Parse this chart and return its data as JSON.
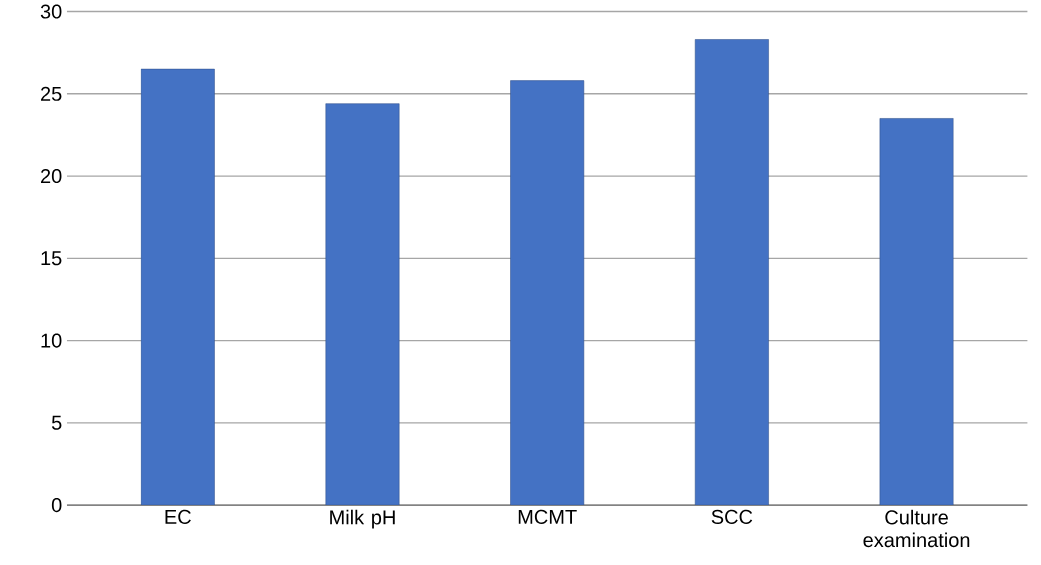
{
  "chart_data": {
    "type": "bar",
    "categories": [
      "EC",
      "Milk pH",
      "MCMT",
      "SCC",
      "Culture examination"
    ],
    "values": [
      26.5,
      24.4,
      25.8,
      28.3,
      23.5
    ],
    "color": "#4472c4",
    "ylim": [
      0,
      30
    ],
    "yticks": [
      0,
      5,
      10,
      15,
      20,
      25,
      30
    ],
    "grid": "y"
  }
}
